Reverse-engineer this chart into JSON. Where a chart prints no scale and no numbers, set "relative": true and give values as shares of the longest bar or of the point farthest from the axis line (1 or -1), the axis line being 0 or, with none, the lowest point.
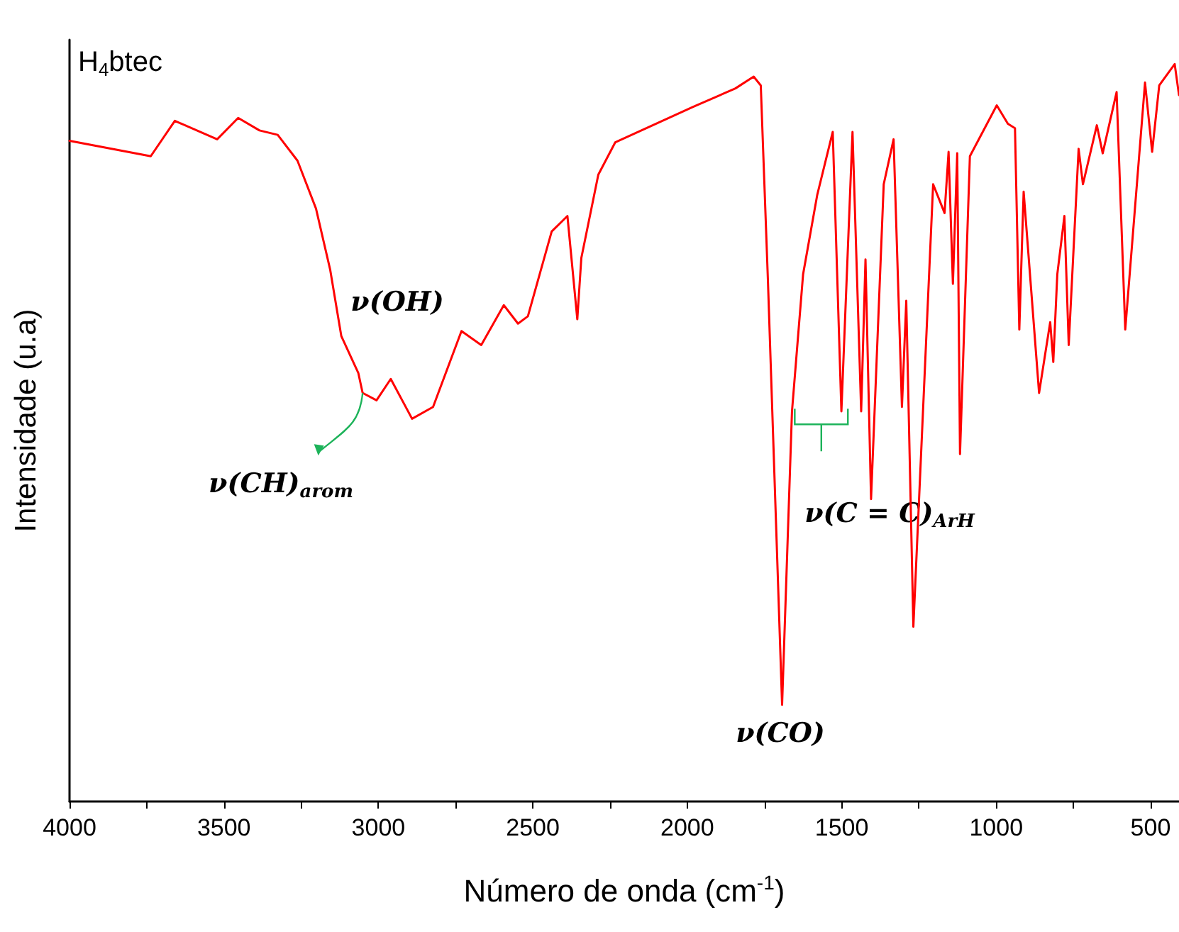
{
  "chart_data": {
    "type": "line",
    "relative": true,
    "title": "H$_{4}$btec",
    "xlabel": "Número de onda (cm$^{-1}$)",
    "ylabel": "Intensidade (u.a)",
    "xlim": [
      4000,
      408
    ],
    "xticks": [
      4000,
      {
        "value": 3750,
        "label": null
      },
      3500,
      {
        "value": 3250,
        "label": null
      },
      3000,
      {
        "value": 2750,
        "label": null
      },
      2500,
      {
        "value": 2250,
        "label": null
      },
      2000,
      {
        "value": 1750,
        "label": null
      },
      1500,
      {
        "value": 1250,
        "label": null
      },
      1000,
      {
        "value": 750,
        "label": null
      },
      500
    ],
    "grid": false,
    "marker": "none",
    "line_style": "solid",
    "series": [
      {
        "color": "#ff0000",
        "x": [
          4000,
          3737,
          3659,
          3522,
          3454,
          3385,
          3326,
          3262,
          3202,
          3156,
          3120,
          3065,
          3051,
          3006,
          2960,
          2891,
          2823,
          2731,
          2667,
          2594,
          2548,
          2516,
          2439,
          2388,
          2356,
          2343,
          2288,
          2233,
          1981,
          1844,
          1785,
          1762,
          1739,
          1693,
          1661,
          1625,
          1579,
          1529,
          1501,
          1465,
          1437,
          1423,
          1405,
          1364,
          1332,
          1305,
          1291,
          1268,
          1204,
          1167,
          1154,
          1140,
          1126,
          1117,
          1085,
          998,
          962,
          939,
          925,
          911,
          861,
          825,
          815,
          802,
          779,
          765,
          733,
          719,
          674,
          655,
          610,
          582,
          518,
          495,
          472,
          422,
          408
        ],
        "values": [
          0.896,
          0.875,
          0.923,
          0.898,
          0.927,
          0.91,
          0.904,
          0.869,
          0.804,
          0.721,
          0.631,
          0.581,
          0.554,
          0.544,
          0.573,
          0.519,
          0.535,
          0.638,
          0.619,
          0.673,
          0.648,
          0.658,
          0.773,
          0.794,
          0.654,
          0.737,
          0.85,
          0.894,
          0.942,
          0.967,
          0.983,
          0.971,
          0.708,
          0.131,
          0.529,
          0.715,
          0.823,
          0.908,
          0.529,
          0.908,
          0.529,
          0.735,
          0.41,
          0.837,
          0.898,
          0.535,
          0.679,
          0.237,
          0.837,
          0.798,
          0.881,
          0.702,
          0.879,
          0.471,
          0.875,
          0.944,
          0.919,
          0.913,
          0.64,
          0.827,
          0.554,
          0.65,
          0.596,
          0.715,
          0.794,
          0.619,
          0.885,
          0.837,
          0.917,
          0.879,
          0.962,
          0.64,
          0.975,
          0.881,
          0.971,
          1.0,
          0.958
        ]
      }
    ],
    "annotations": [
      "ν(OH)",
      "ν(CH)$_{arom}$",
      "ν(C = C)$_{ArH}$",
      "ν(CO)"
    ]
  }
}
